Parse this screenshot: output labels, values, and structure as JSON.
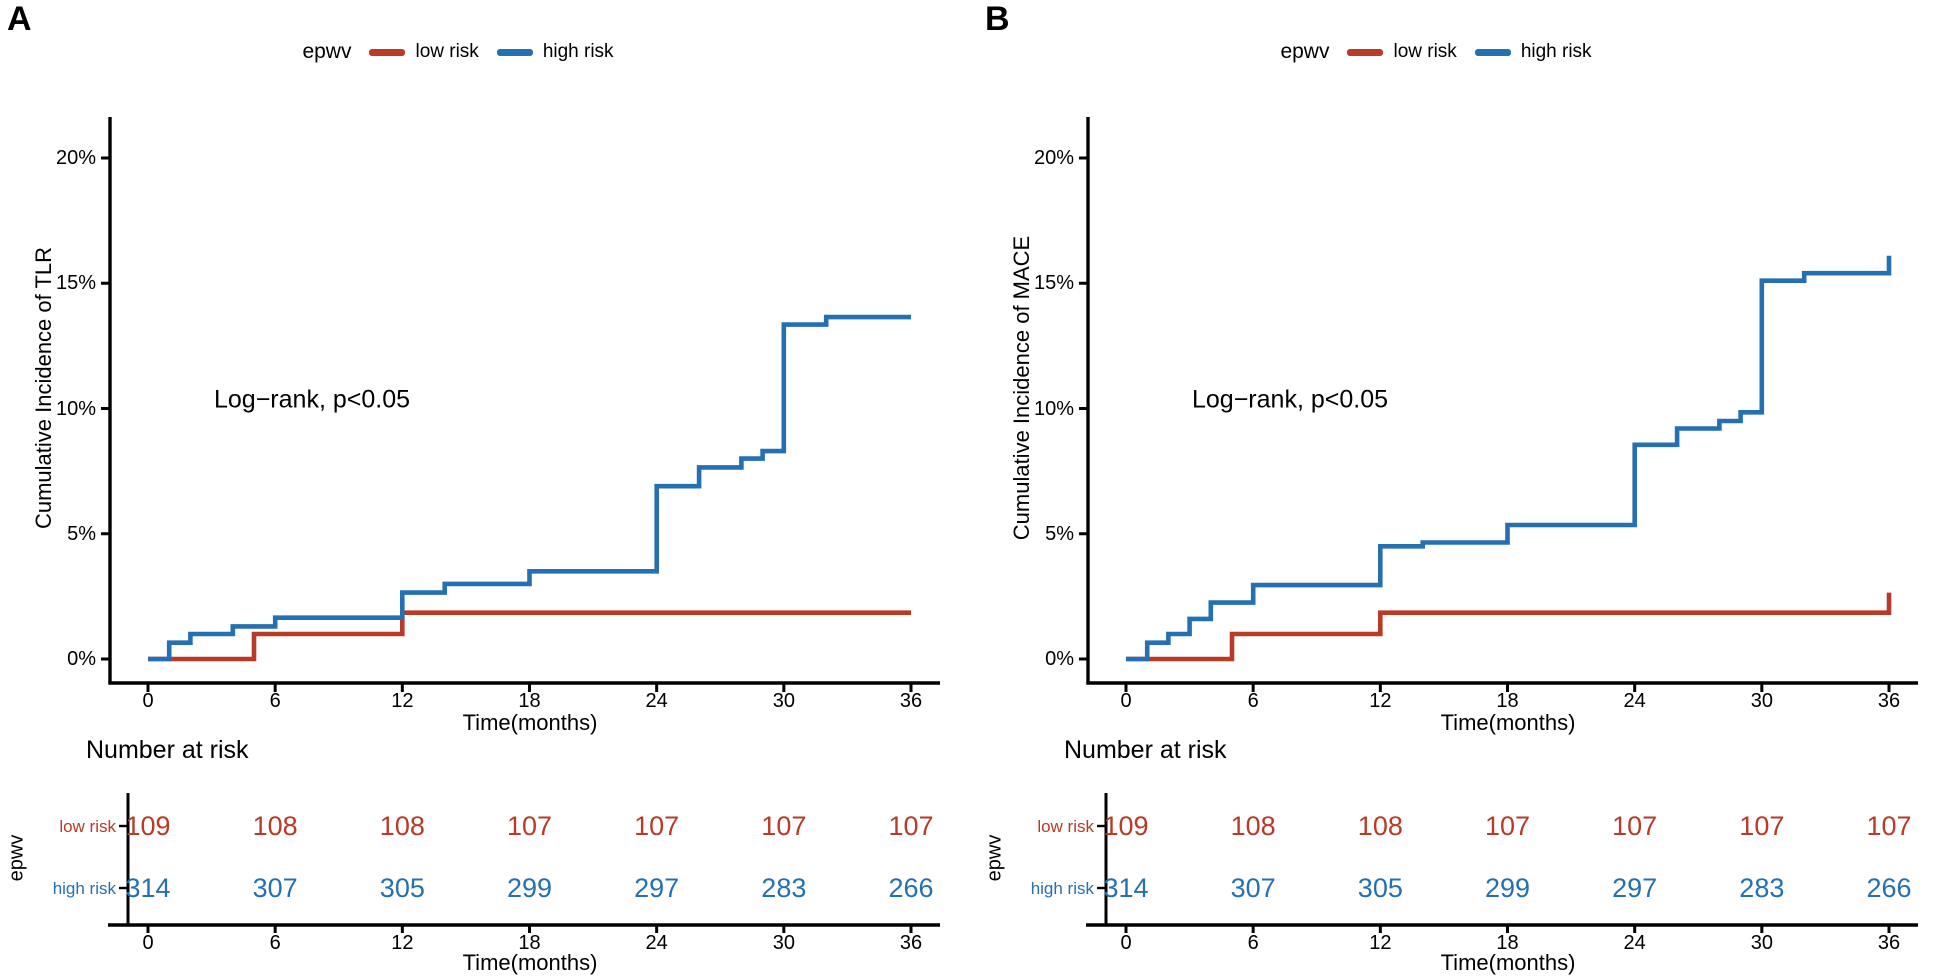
{
  "figure": {
    "background": "#ffffff"
  },
  "chart_data": [
    {
      "panel_label": "A",
      "type": "line",
      "subtype": "kaplan-meier-cumulative-incidence-step",
      "title": "",
      "ylabel": "Cumulative Incidence of TLR",
      "xlabel": "Time(months)",
      "annotation": "Log−rank, p<0.05",
      "legend_title": "epwv",
      "legend_position": "top-center",
      "grid": false,
      "xlim": [
        0,
        36
      ],
      "ylim_percent": [
        0,
        20
      ],
      "x_ticks": [
        0,
        6,
        12,
        18,
        24,
        30,
        36
      ],
      "y_tick_percents": [
        0,
        5,
        10,
        15,
        20
      ],
      "y_tick_labels": [
        "0%",
        "5%",
        "10%",
        "15%",
        "20%"
      ],
      "series": [
        {
          "name": "low risk",
          "color": "#b93a26",
          "steps_month_percent": [
            [
              0,
              0
            ],
            [
              5,
              0
            ],
            [
              5,
              1.0
            ],
            [
              12,
              1.0
            ],
            [
              12,
              1.85
            ],
            [
              36,
              1.85
            ]
          ]
        },
        {
          "name": "high risk",
          "color": "#2470b3",
          "steps_month_percent": [
            [
              0,
              0
            ],
            [
              1,
              0
            ],
            [
              1,
              0.65
            ],
            [
              2,
              0.65
            ],
            [
              2,
              1.0
            ],
            [
              4,
              1.0
            ],
            [
              4,
              1.3
            ],
            [
              6,
              1.3
            ],
            [
              6,
              1.65
            ],
            [
              12,
              1.65
            ],
            [
              12,
              2.65
            ],
            [
              14,
              2.65
            ],
            [
              14,
              3.0
            ],
            [
              18,
              3.0
            ],
            [
              18,
              3.5
            ],
            [
              24,
              3.5
            ],
            [
              24,
              6.9
            ],
            [
              26,
              6.9
            ],
            [
              26,
              7.65
            ],
            [
              28,
              7.65
            ],
            [
              28,
              8.0
            ],
            [
              29,
              8.0
            ],
            [
              29,
              8.3
            ],
            [
              30,
              8.3
            ],
            [
              30,
              13.35
            ],
            [
              32,
              13.35
            ],
            [
              32,
              13.65
            ],
            [
              36,
              13.65
            ]
          ]
        }
      ],
      "number_at_risk": {
        "title": "Number at risk",
        "group_axis_label": "epwv",
        "time_points": [
          0,
          6,
          12,
          18,
          24,
          30,
          36
        ],
        "xlabel": "Time(months)",
        "rows": [
          {
            "name": "low risk",
            "color": "#b93a26",
            "counts": [
              109,
              108,
              108,
              107,
              107,
              107,
              107
            ]
          },
          {
            "name": "high risk",
            "color": "#2470b3",
            "counts": [
              314,
              307,
              305,
              299,
              297,
              283,
              266
            ]
          }
        ]
      }
    },
    {
      "panel_label": "B",
      "type": "line",
      "subtype": "kaplan-meier-cumulative-incidence-step",
      "title": "",
      "ylabel": "Cumulative Incidence of MACE",
      "xlabel": "Time(months)",
      "annotation": "Log−rank, p<0.05",
      "legend_title": "epwv",
      "legend_position": "top-center",
      "grid": false,
      "xlim": [
        0,
        36
      ],
      "ylim_percent": [
        0,
        20
      ],
      "x_ticks": [
        0,
        6,
        12,
        18,
        24,
        30,
        36
      ],
      "y_tick_percents": [
        0,
        5,
        10,
        15,
        20
      ],
      "y_tick_labels": [
        "0%",
        "5%",
        "10%",
        "15%",
        "20%"
      ],
      "series": [
        {
          "name": "low risk",
          "color": "#b93a26",
          "steps_month_percent": [
            [
              0,
              0
            ],
            [
              5,
              0
            ],
            [
              5,
              1.0
            ],
            [
              12,
              1.0
            ],
            [
              12,
              1.85
            ],
            [
              36,
              1.85
            ],
            [
              36,
              2.65
            ]
          ]
        },
        {
          "name": "high risk",
          "color": "#2470b3",
          "steps_month_percent": [
            [
              0,
              0
            ],
            [
              1,
              0
            ],
            [
              1,
              0.65
            ],
            [
              2,
              0.65
            ],
            [
              2,
              1.0
            ],
            [
              3,
              1.0
            ],
            [
              3,
              1.6
            ],
            [
              4,
              1.6
            ],
            [
              4,
              2.25
            ],
            [
              6,
              2.25
            ],
            [
              6,
              2.95
            ],
            [
              12,
              2.95
            ],
            [
              12,
              4.5
            ],
            [
              14,
              4.5
            ],
            [
              14,
              4.65
            ],
            [
              18,
              4.65
            ],
            [
              18,
              5.35
            ],
            [
              24,
              5.35
            ],
            [
              24,
              8.55
            ],
            [
              26,
              8.55
            ],
            [
              26,
              9.2
            ],
            [
              28,
              9.2
            ],
            [
              28,
              9.5
            ],
            [
              29,
              9.5
            ],
            [
              29,
              9.85
            ],
            [
              30,
              9.85
            ],
            [
              30,
              15.1
            ],
            [
              32,
              15.1
            ],
            [
              32,
              15.4
            ],
            [
              36,
              15.4
            ],
            [
              36,
              16.1
            ]
          ]
        }
      ],
      "number_at_risk": {
        "title": "Number at risk",
        "group_axis_label": "epwv",
        "time_points": [
          0,
          6,
          12,
          18,
          24,
          30,
          36
        ],
        "xlabel": "Time(months)",
        "rows": [
          {
            "name": "low risk",
            "color": "#b93a26",
            "counts": [
              109,
              108,
              108,
              107,
              107,
              107,
              107
            ]
          },
          {
            "name": "high risk",
            "color": "#2470b3",
            "counts": [
              314,
              307,
              305,
              299,
              297,
              283,
              266
            ]
          }
        ]
      }
    }
  ]
}
